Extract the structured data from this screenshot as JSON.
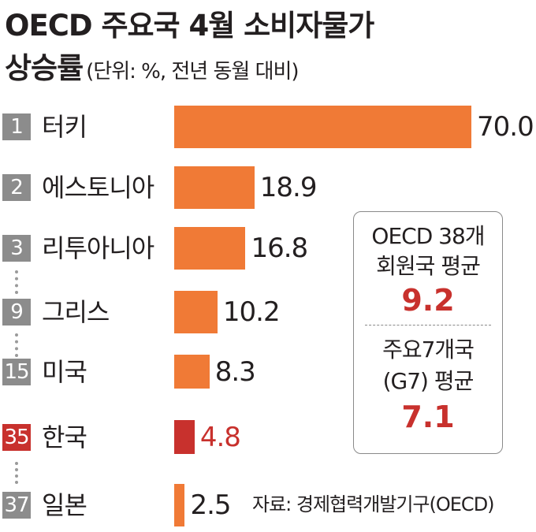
{
  "title": {
    "line1": "OECD 주요국 4월 소비자물가",
    "line2": "상승률",
    "subtitle": "(단위: %, 전년 동월 대비)"
  },
  "chart_data": {
    "type": "bar",
    "orientation": "horizontal",
    "title": "OECD 주요국 4월 소비자물가 상승률",
    "unit_note": "(단위: %, 전년 동월 대비)",
    "ranks": [
      "1",
      "2",
      "3",
      "9",
      "15",
      "35",
      "37"
    ],
    "categories": [
      "터키",
      "에스토니아",
      "리투아니아",
      "그리스",
      "미국",
      "한국",
      "일본"
    ],
    "values": [
      70.0,
      18.9,
      16.8,
      10.2,
      8.3,
      4.8,
      2.5
    ],
    "value_labels": [
      "70.0",
      "18.9",
      "16.8",
      "10.2",
      "8.3",
      "4.8",
      "2.5"
    ],
    "highlight_index": 5,
    "xlim": [
      0,
      70
    ],
    "grid": false,
    "colors": {
      "bar": "#f07a36",
      "highlight": "#c8312d",
      "rank_badge": "#8c8c8c"
    }
  },
  "averages": {
    "oecd_label_1": "OECD 38개",
    "oecd_label_2": "회원국 평균",
    "oecd_value": "9.2",
    "g7_label_1": "주요7개국",
    "g7_label_2": "(G7) 평균",
    "g7_value": "7.1"
  },
  "source": "자료: 경제협력개발기구(OECD)"
}
